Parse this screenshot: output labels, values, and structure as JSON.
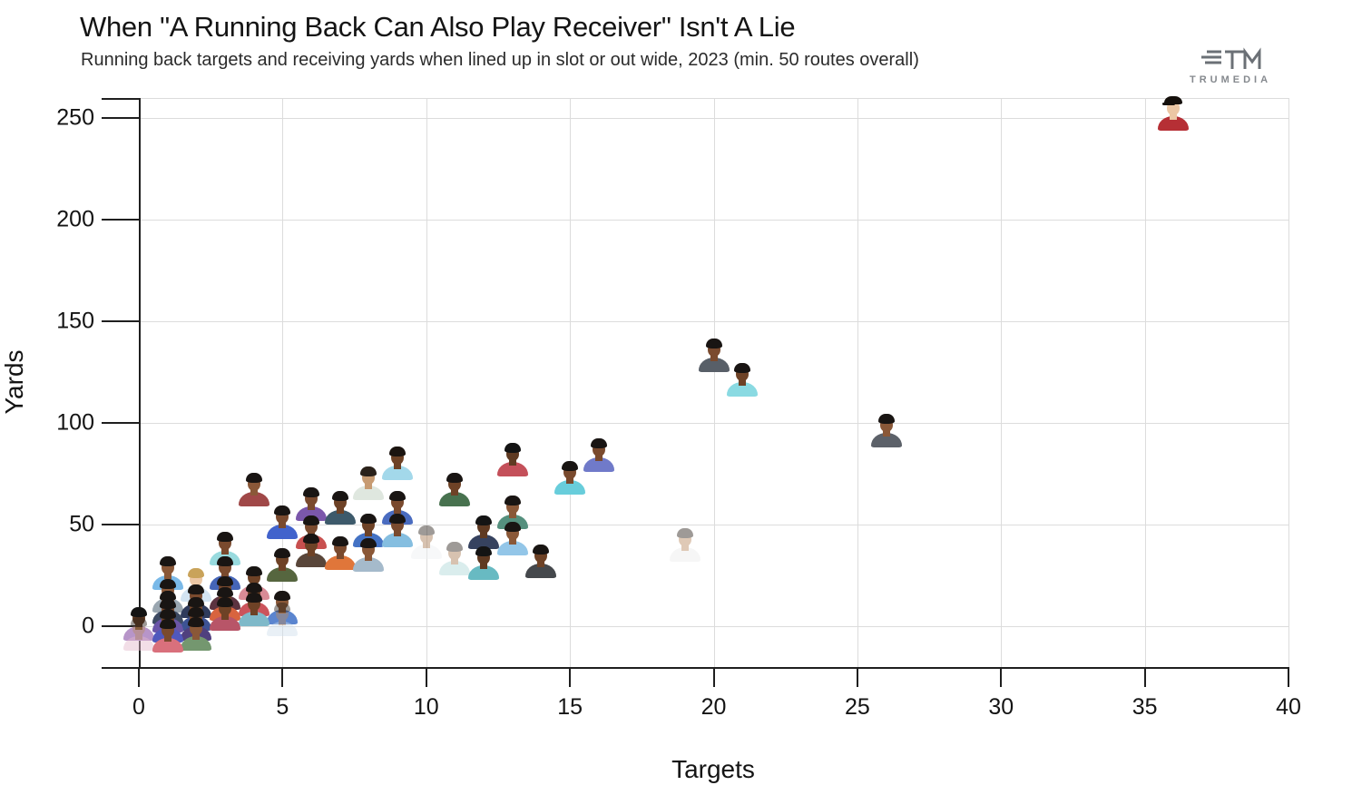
{
  "header": {
    "title": "When \"A Running Back Can Also Play Receiver\" Isn't A Lie",
    "subtitle": "Running back targets and receiving yards when lined up in slot or out wide, 2023 (min. 50 routes overall)"
  },
  "logo": {
    "brand": "TRUMEDIA"
  },
  "chart_data": {
    "type": "scatter",
    "title": "When \"A Running Back Can Also Play Receiver\" Isn't A Lie",
    "subtitle": "Running back targets and receiving yards when lined up in slot or out wide, 2023 (min. 50 routes overall)",
    "xlabel": "Targets",
    "ylabel": "Yards",
    "xlim": [
      0,
      40
    ],
    "ylim": [
      -20,
      260
    ],
    "x_ticks": [
      0,
      5,
      10,
      15,
      20,
      25,
      30,
      35,
      40
    ],
    "y_ticks": [
      0,
      50,
      100,
      150,
      200,
      250
    ],
    "grid": true,
    "marker": "player-headshot",
    "points": [
      {
        "t": 36,
        "y": 252,
        "jersey": "#b62f35",
        "skin": "#ecc7a4",
        "hair": "#15100c",
        "cap": true
      },
      {
        "t": 20,
        "y": 133,
        "jersey": "#585f68",
        "skin": "#7a4a2e",
        "hair": "#191513"
      },
      {
        "t": 21,
        "y": 121,
        "jersey": "#8adae2",
        "skin": "#6e4226",
        "hair": "#191513"
      },
      {
        "t": 26,
        "y": 96,
        "jersey": "#5c6169",
        "skin": "#8a5838",
        "hair": "#191513"
      },
      {
        "t": 16,
        "y": 84,
        "jersey": "#707ac9",
        "skin": "#7a4a2e",
        "hair": "#191513"
      },
      {
        "t": 13,
        "y": 82,
        "jersey": "#c4505a",
        "skin": "#5f3a22",
        "hair": "#141414"
      },
      {
        "t": 9,
        "y": 80,
        "jersey": "#a3d8ea",
        "skin": "#6e4226",
        "hair": "#1b1410"
      },
      {
        "t": 15,
        "y": 73,
        "jersey": "#68cddb",
        "skin": "#7a4a2e",
        "hair": "#191513"
      },
      {
        "t": 8,
        "y": 70,
        "jersey": "#dfe7df",
        "skin": "#c79b72",
        "hair": "#2a211a"
      },
      {
        "t": 4,
        "y": 67,
        "jersey": "#a04848",
        "skin": "#8a5838",
        "hair": "#191513"
      },
      {
        "t": 11,
        "y": 67,
        "jersey": "#48724f",
        "skin": "#6e4226",
        "hair": "#191513"
      },
      {
        "t": 6,
        "y": 60,
        "jersey": "#7b57ab",
        "skin": "#7a4a2e",
        "hair": "#191513"
      },
      {
        "t": 7,
        "y": 58,
        "jersey": "#3d5a6b",
        "skin": "#6e4226",
        "hair": "#191513"
      },
      {
        "t": 9,
        "y": 58,
        "jersey": "#4a6cc0",
        "skin": "#7a4a2e",
        "hair": "#191513"
      },
      {
        "t": 13,
        "y": 56,
        "jersey": "#55907e",
        "skin": "#8a5838",
        "hair": "#191513"
      },
      {
        "t": 5,
        "y": 51,
        "jersey": "#4263cc",
        "skin": "#7a4a2e",
        "hair": "#191513"
      },
      {
        "t": 8,
        "y": 47,
        "jersey": "#4472c4",
        "skin": "#6e4226",
        "hair": "#191513"
      },
      {
        "t": 9,
        "y": 47,
        "jersey": "#85bee0",
        "skin": "#7a4a2e",
        "hair": "#191513"
      },
      {
        "t": 12,
        "y": 46,
        "jersey": "#36425f",
        "skin": "#5f3a22",
        "hair": "#141414"
      },
      {
        "t": 6,
        "y": 46,
        "jersey": "#c8504f",
        "skin": "#7a4a2e",
        "hair": "#191513"
      },
      {
        "t": 13,
        "y": 43,
        "jersey": "#93c6e8",
        "skin": "#8a5838",
        "hair": "#191513"
      },
      {
        "t": 10,
        "y": 41,
        "jersey": "#eef0f2",
        "skin": "#a87a52",
        "hair": "#2a211a",
        "faded": true
      },
      {
        "t": 19,
        "y": 40,
        "jersey": "#ececec",
        "skin": "#b98a5e",
        "hair": "#2a211a",
        "faded": true
      },
      {
        "t": 3,
        "y": 38,
        "jersey": "#98dade",
        "skin": "#7a4a2e",
        "hair": "#191513"
      },
      {
        "t": 6,
        "y": 37,
        "jersey": "#59463a",
        "skin": "#6e4226",
        "hair": "#191513"
      },
      {
        "t": 7,
        "y": 36,
        "jersey": "#e0763a",
        "skin": "#7a4a2e",
        "hair": "#191513"
      },
      {
        "t": 8,
        "y": 35,
        "jersey": "#a5bacb",
        "skin": "#8a5838",
        "hair": "#191513"
      },
      {
        "t": 11,
        "y": 33,
        "jersey": "#aed8d8",
        "skin": "#a87a52",
        "hair": "#2a211a",
        "faded": true
      },
      {
        "t": 14,
        "y": 32,
        "jersey": "#45484c",
        "skin": "#6e4226",
        "hair": "#191513"
      },
      {
        "t": 12,
        "y": 31,
        "jersey": "#68bac2",
        "skin": "#5f3a22",
        "hair": "#141414"
      },
      {
        "t": 5,
        "y": 30,
        "jersey": "#56663f",
        "skin": "#6e4226",
        "hair": "#191513"
      },
      {
        "t": 1,
        "y": 26,
        "jersey": "#7ab9e8",
        "skin": "#8a5838",
        "hair": "#191513"
      },
      {
        "t": 3,
        "y": 26,
        "jersey": "#4565b8",
        "skin": "#7a4a2e",
        "hair": "#191513"
      },
      {
        "t": 4,
        "y": 21,
        "jersey": "#d98b96",
        "skin": "#6e4226",
        "hair": "#191513"
      },
      {
        "t": 2,
        "y": 20,
        "jersey": "#d3e4f2",
        "skin": "#ecc7a4",
        "hair": "#c9a35a"
      },
      {
        "t": 3,
        "y": 16,
        "jersey": "#5c3340",
        "skin": "#7a4a2e",
        "hair": "#191513"
      },
      {
        "t": 1,
        "y": 15,
        "jersey": "#9aa6b0",
        "skin": "#8a5838",
        "hair": "#191513"
      },
      {
        "t": 4,
        "y": 13,
        "jersey": "#cc545c",
        "skin": "#6e4226",
        "hair": "#191513"
      },
      {
        "t": 2,
        "y": 12,
        "jersey": "#2f3b5c",
        "skin": "#7a4a2e",
        "hair": "#191513"
      },
      {
        "t": 3,
        "y": 11,
        "jersey": "#d8643f",
        "skin": "#6e4226",
        "hair": "#191513"
      },
      {
        "t": 1,
        "y": 9,
        "jersey": "#3d4a63",
        "skin": "#7a4a2e",
        "hair": "#191513"
      },
      {
        "t": 5,
        "y": 9,
        "jersey": "#5b85cf",
        "skin": "#8a5838",
        "hair": "#191513"
      },
      {
        "t": 4,
        "y": 8,
        "jersey": "#7fb9c9",
        "skin": "#6e4226",
        "hair": "#191513"
      },
      {
        "t": 2,
        "y": 6,
        "jersey": "#3d5394",
        "skin": "#7a4a2e",
        "hair": "#191513"
      },
      {
        "t": 3,
        "y": 6,
        "jersey": "#b85568",
        "skin": "#6e4226",
        "hair": "#191513"
      },
      {
        "t": 1,
        "y": 5,
        "jersey": "#6a55a8",
        "skin": "#7a4a2e",
        "hair": "#191513"
      },
      {
        "t": 5,
        "y": 3,
        "jersey": "#cfe0ec",
        "skin": "#b98a5e",
        "hair": "#2a211a",
        "faded": true
      },
      {
        "t": 0,
        "y": 1,
        "jersey": "#b795c9",
        "skin": "#5f3a22",
        "hair": "#141414"
      },
      {
        "t": 2,
        "y": 1,
        "jersey": "#50407e",
        "skin": "#7a4a2e",
        "hair": "#191513"
      },
      {
        "t": 1,
        "y": 0,
        "jersey": "#5058bd",
        "skin": "#6e4226",
        "hair": "#191513"
      },
      {
        "t": 2,
        "y": -4,
        "jersey": "#74976f",
        "skin": "#8a5838",
        "hair": "#191513"
      },
      {
        "t": 0,
        "y": -4,
        "jersey": "#e3b8cc",
        "skin": "#b98a5e",
        "hair": "#2a211a",
        "faded": true
      },
      {
        "t": 1,
        "y": -5,
        "jersey": "#d9707c",
        "skin": "#7a4a2e",
        "hair": "#191513"
      }
    ]
  }
}
